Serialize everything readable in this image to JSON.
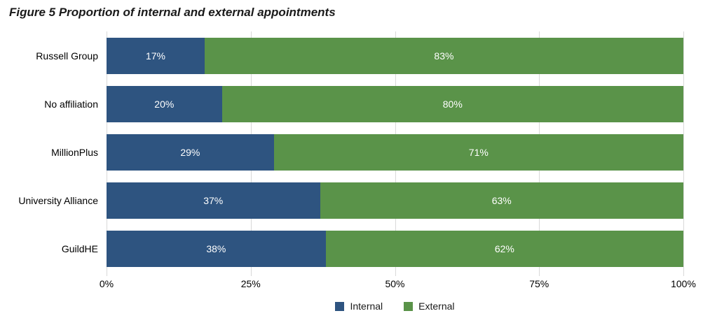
{
  "title": "Figure 5 Proportion of internal and external appointments",
  "colors": {
    "internal": "#2E5480",
    "external": "#5A9349",
    "gridline": "#D9D9D9",
    "bar_label": "#FFFFFF",
    "text": "#000000"
  },
  "chart_data": {
    "type": "bar",
    "orientation": "horizontal",
    "stacked": true,
    "title": "Figure 5 Proportion of internal and external appointments",
    "categories": [
      "Russell Group",
      "No affiliation",
      "MillionPlus",
      "University Alliance",
      "GuildHE"
    ],
    "series": [
      {
        "name": "Internal",
        "color": "#2E5480",
        "values": [
          17,
          20,
          29,
          37,
          38
        ]
      },
      {
        "name": "External",
        "color": "#5A9349",
        "values": [
          83,
          80,
          71,
          63,
          62
        ]
      }
    ],
    "value_suffix": "%",
    "xlim": [
      0,
      100
    ],
    "x_ticks": [
      "0%",
      "25%",
      "50%",
      "75%",
      "100%"
    ],
    "x_tick_values": [
      0,
      25,
      50,
      75,
      100
    ],
    "grid": true,
    "legend_position": "bottom"
  },
  "legend": {
    "items": [
      {
        "label": "Internal",
        "color": "#2E5480"
      },
      {
        "label": "External",
        "color": "#5A9349"
      }
    ]
  }
}
